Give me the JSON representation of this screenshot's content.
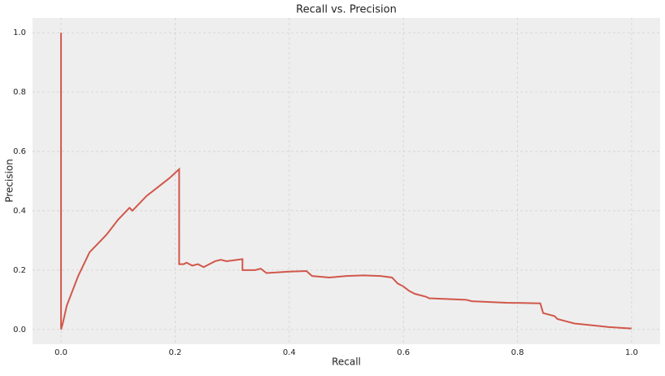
{
  "chart_data": {
    "type": "line",
    "title": "Recall vs. Precision",
    "x_label": "Recall",
    "y_label": "Precision",
    "grid": true,
    "xlim": [
      -0.05,
      1.05
    ],
    "ylim": [
      -0.05,
      1.05
    ],
    "xticks": [
      {
        "value": 0,
        "label": "0.0"
      },
      0.2,
      0.4,
      0.6,
      0.8,
      {
        "value": 1,
        "label": "1.0"
      }
    ],
    "yticks": [
      {
        "value": 0,
        "label": "0.0"
      },
      0.2,
      0.4,
      0.6,
      0.8,
      {
        "value": 1,
        "label": "1.0"
      }
    ],
    "series": [
      {
        "color": "#d1574a",
        "x": [
          0,
          0,
          0.003,
          0.01,
          0.02,
          0.03,
          0.04,
          0.05,
          0.06,
          0.065,
          0.07,
          0.08,
          0.1,
          0.115,
          0.12,
          0.125,
          0.13,
          0.15,
          0.17,
          0.19,
          0.207,
          0.207,
          0.215,
          0.22,
          0.23,
          0.24,
          0.25,
          0.27,
          0.28,
          0.29,
          0.31,
          0.318,
          0.318,
          0.34,
          0.35,
          0.36,
          0.4,
          0.43,
          0.44,
          0.47,
          0.5,
          0.53,
          0.56,
          0.58,
          0.59,
          0.6,
          0.61,
          0.62,
          0.64,
          0.645,
          0.71,
          0.72,
          0.78,
          0.84,
          0.845,
          0.865,
          0.87,
          0.89,
          0.9,
          0.94,
          0.96,
          1.0
        ],
        "values": [
          1.0,
          0,
          0.02,
          0.08,
          0.13,
          0.18,
          0.22,
          0.26,
          0.28,
          0.29,
          0.3,
          0.32,
          0.37,
          0.4,
          0.41,
          0.4,
          0.41,
          0.45,
          0.48,
          0.51,
          0.54,
          0.22,
          0.22,
          0.225,
          0.215,
          0.22,
          0.21,
          0.23,
          0.235,
          0.23,
          0.235,
          0.237,
          0.2,
          0.2,
          0.205,
          0.19,
          0.195,
          0.197,
          0.18,
          0.175,
          0.18,
          0.182,
          0.18,
          0.175,
          0.155,
          0.145,
          0.13,
          0.12,
          0.11,
          0.105,
          0.1,
          0.095,
          0.09,
          0.088,
          0.055,
          0.045,
          0.035,
          0.025,
          0.02,
          0.012,
          0.008,
          0.003
        ]
      }
    ]
  }
}
